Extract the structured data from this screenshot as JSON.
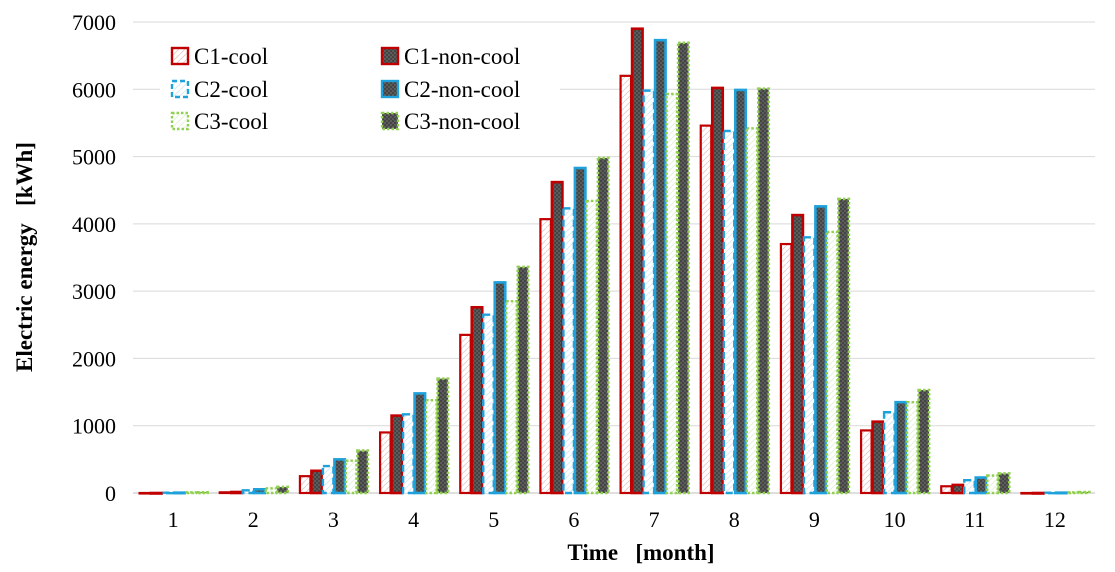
{
  "chart_data": {
    "type": "bar",
    "categories": [
      "1",
      "2",
      "3",
      "4",
      "5",
      "6",
      "7",
      "8",
      "9",
      "10",
      "11",
      "12"
    ],
    "xlabel": "Time   [month]",
    "ylabel": "Electric energy   [kWh]",
    "ylim": [
      0,
      7000
    ],
    "yticks": [
      "0",
      "1000",
      "2000",
      "3000",
      "4000",
      "5000",
      "6000",
      "7000"
    ],
    "grid": "horizontal",
    "legend_position": "top-left",
    "series": [
      {
        "name": "C1-cool",
        "values": [
          0,
          10,
          250,
          900,
          2350,
          4070,
          6200,
          5460,
          3700,
          930,
          100,
          0
        ],
        "stroke": "#c00000",
        "fill": "#ffffff",
        "style": "outline"
      },
      {
        "name": "C1-non-cool",
        "values": [
          0,
          15,
          330,
          1150,
          2760,
          4620,
          6900,
          6020,
          4130,
          1060,
          120,
          0
        ],
        "stroke": "#c00000",
        "fill": "#5a5a5a",
        "style": "solid"
      },
      {
        "name": "C2-cool",
        "values": [
          5,
          40,
          400,
          1170,
          2650,
          4230,
          5980,
          5380,
          3800,
          1200,
          190,
          5
        ],
        "stroke": "#1fa2dc",
        "fill": "#ffffff",
        "style": "dashed"
      },
      {
        "name": "C2-non-cool",
        "values": [
          5,
          55,
          500,
          1480,
          3130,
          4830,
          6730,
          5990,
          4260,
          1350,
          230,
          5
        ],
        "stroke": "#1fa2dc",
        "fill": "#5a5a5a",
        "style": "solid"
      },
      {
        "name": "C3-cool",
        "values": [
          10,
          70,
          480,
          1380,
          2850,
          4340,
          5930,
          5420,
          3880,
          1350,
          260,
          10
        ],
        "stroke": "#92d050",
        "fill": "#ffffff",
        "style": "dotted"
      },
      {
        "name": "C3-non-cool",
        "values": [
          10,
          90,
          630,
          1700,
          3360,
          4980,
          6690,
          6010,
          4370,
          1530,
          290,
          15
        ],
        "stroke": "#92d050",
        "fill": "#4a4a4a",
        "style": "dotted-solid"
      }
    ]
  }
}
